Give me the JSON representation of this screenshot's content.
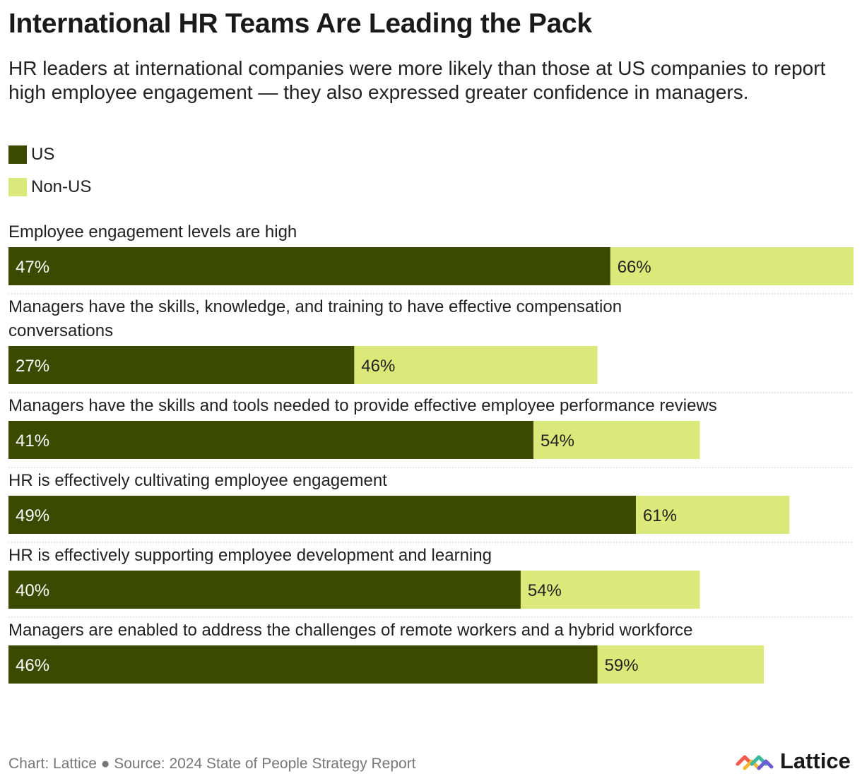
{
  "title": "International HR Teams Are Leading the Pack",
  "subtitle": "HR leaders at international companies were more likely than those at US companies to report high employee engagement — they also expressed greater confidence in managers.",
  "footer": "Chart: Lattice ● Source: 2024 State of People Strategy Report",
  "logo_text": "Lattice",
  "colors": {
    "us": "#3b4a00",
    "non_us": "#dbe97b",
    "separator": "#cccccc"
  },
  "chart_data": {
    "type": "bar",
    "orientation": "horizontal",
    "layout": "overlapping",
    "value_suffix": "%",
    "xlim": [
      0,
      66
    ],
    "categories": [
      "Employee engagement levels are high",
      "Managers have the skills, knowledge, and training to have effective compensation conversations",
      "Managers have the skills and tools needed to provide effective employee performance reviews",
      "HR is effectively cultivating employee engagement",
      "HR is effectively supporting employee development and learning",
      "Managers are enabled to address the challenges of remote workers and a hybrid workforce"
    ],
    "series": [
      {
        "name": "US",
        "values": [
          47,
          27,
          41,
          49,
          40,
          46
        ]
      },
      {
        "name": "Non-US",
        "values": [
          66,
          46,
          54,
          61,
          54,
          59
        ]
      }
    ],
    "legend": "top-left",
    "grid": false
  }
}
